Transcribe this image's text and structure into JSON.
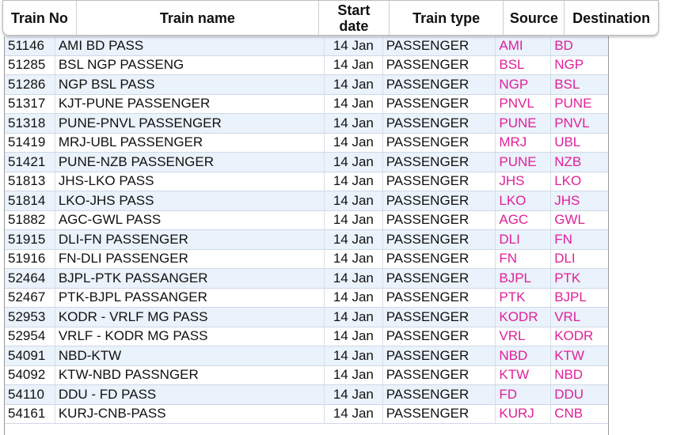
{
  "columns": {
    "train_no": "Train No",
    "train_name": "Train name",
    "start_date_line1": "Start",
    "start_date_line2": "date",
    "train_type": "Train type",
    "source": "Source",
    "destination": "Destination"
  },
  "rows": [
    {
      "no": "51146",
      "name": "AMI BD PASS",
      "date": "14 Jan",
      "type": "PASSENGER",
      "src": "AMI",
      "dst": "BD"
    },
    {
      "no": "51285",
      "name": "BSL NGP PASSENG",
      "date": "14 Jan",
      "type": "PASSENGER",
      "src": "BSL",
      "dst": "NGP"
    },
    {
      "no": "51286",
      "name": "NGP BSL PASS",
      "date": "14 Jan",
      "type": "PASSENGER",
      "src": "NGP",
      "dst": "BSL"
    },
    {
      "no": "51317",
      "name": "KJT-PUNE PASSENGER",
      "date": "14 Jan",
      "type": "PASSENGER",
      "src": "PNVL",
      "dst": "PUNE"
    },
    {
      "no": "51318",
      "name": "PUNE-PNVL PASSENGER",
      "date": "14 Jan",
      "type": "PASSENGER",
      "src": "PUNE",
      "dst": "PNVL"
    },
    {
      "no": "51419",
      "name": "MRJ-UBL PASSENGER",
      "date": "14 Jan",
      "type": "PASSENGER",
      "src": "MRJ",
      "dst": "UBL"
    },
    {
      "no": "51421",
      "name": "PUNE-NZB PASSENGER",
      "date": "14 Jan",
      "type": "PASSENGER",
      "src": "PUNE",
      "dst": "NZB"
    },
    {
      "no": "51813",
      "name": "JHS-LKO PASS",
      "date": "14 Jan",
      "type": "PASSENGER",
      "src": "JHS",
      "dst": "LKO"
    },
    {
      "no": "51814",
      "name": "LKO-JHS PASS",
      "date": "14 Jan",
      "type": "PASSENGER",
      "src": "LKO",
      "dst": "JHS"
    },
    {
      "no": "51882",
      "name": "AGC-GWL PASS",
      "date": "14 Jan",
      "type": "PASSENGER",
      "src": "AGC",
      "dst": "GWL"
    },
    {
      "no": "51915",
      "name": "DLI-FN PASSENGER",
      "date": "14 Jan",
      "type": "PASSENGER",
      "src": "DLI",
      "dst": "FN"
    },
    {
      "no": "51916",
      "name": "FN-DLI PASSENGER",
      "date": "14 Jan",
      "type": "PASSENGER",
      "src": "FN",
      "dst": "DLI"
    },
    {
      "no": "52464",
      "name": "BJPL-PTK PASSANGER",
      "date": "14 Jan",
      "type": "PASSENGER",
      "src": "BJPL",
      "dst": "PTK"
    },
    {
      "no": "52467",
      "name": "PTK-BJPL PASSANGER",
      "date": "14 Jan",
      "type": "PASSENGER",
      "src": "PTK",
      "dst": "BJPL"
    },
    {
      "no": "52953",
      "name": "KODR - VRLF MG PASS",
      "date": "14 Jan",
      "type": "PASSENGER",
      "src": "KODR",
      "dst": "VRL"
    },
    {
      "no": "52954",
      "name": "VRLF - KODR MG PASS",
      "date": "14 Jan",
      "type": "PASSENGER",
      "src": "VRL",
      "dst": "KODR"
    },
    {
      "no": "54091",
      "name": "NBD-KTW",
      "date": "14 Jan",
      "type": "PASSENGER",
      "src": "NBD",
      "dst": "KTW"
    },
    {
      "no": "54092",
      "name": "KTW-NBD PASSNGER",
      "date": "14 Jan",
      "type": "PASSENGER",
      "src": "KTW",
      "dst": "NBD"
    },
    {
      "no": "54110",
      "name": "DDU - FD PASS",
      "date": "14 Jan",
      "type": "PASSENGER",
      "src": "FD",
      "dst": "DDU"
    },
    {
      "no": "54161",
      "name": "KURJ-CNB-PASS",
      "date": "14 Jan",
      "type": "PASSENGER",
      "src": "KURJ",
      "dst": "CNB"
    }
  ],
  "colors": {
    "station_text": "#e0209a",
    "row_alt_bg": "#eaf2fb"
  }
}
